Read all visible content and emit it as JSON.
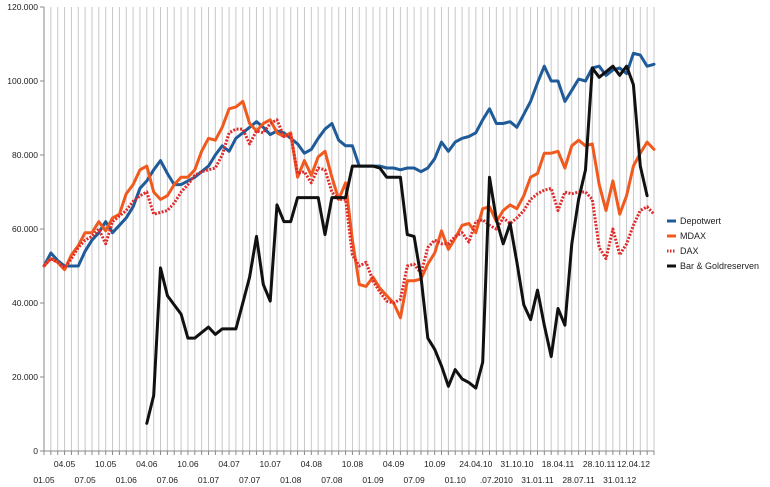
{
  "chart_data": {
    "type": "line",
    "title": "",
    "xlabel": "",
    "ylabel": "",
    "ylim": [
      0,
      120000
    ],
    "yticks": [
      "0",
      "20.000",
      "40.000",
      "60.000",
      "80.000",
      "100.000",
      "120.000"
    ],
    "grid": "vertical",
    "legend_position": "right",
    "xtick_labels": [
      {
        "idx": 3,
        "row": 1,
        "text": "04.05"
      },
      {
        "idx": 9,
        "row": 1,
        "text": "10.05"
      },
      {
        "idx": 15,
        "row": 1,
        "text": "04.06"
      },
      {
        "idx": 21,
        "row": 1,
        "text": "10.06"
      },
      {
        "idx": 27,
        "row": 1,
        "text": "04.07"
      },
      {
        "idx": 33,
        "row": 1,
        "text": "10.07"
      },
      {
        "idx": 39,
        "row": 1,
        "text": "04.08"
      },
      {
        "idx": 45,
        "row": 1,
        "text": "10.08"
      },
      {
        "idx": 51,
        "row": 1,
        "text": "04.09"
      },
      {
        "idx": 57,
        "row": 1,
        "text": "10.09"
      },
      {
        "idx": 63,
        "row": 1,
        "text": "24.04.10"
      },
      {
        "idx": 69,
        "row": 1,
        "text": "31.10.10"
      },
      {
        "idx": 75,
        "row": 1,
        "text": "18.04.11"
      },
      {
        "idx": 81,
        "row": 1,
        "text": "28.10.11"
      },
      {
        "idx": 86,
        "row": 1,
        "text": "12.04.12"
      },
      {
        "idx": 0,
        "row": 2,
        "text": "01.05"
      },
      {
        "idx": 6,
        "row": 2,
        "text": "07.05"
      },
      {
        "idx": 12,
        "row": 2,
        "text": "01.06"
      },
      {
        "idx": 18,
        "row": 2,
        "text": "07.06"
      },
      {
        "idx": 24,
        "row": 2,
        "text": "01.07"
      },
      {
        "idx": 30,
        "row": 2,
        "text": "07.07"
      },
      {
        "idx": 36,
        "row": 2,
        "text": "01.08"
      },
      {
        "idx": 42,
        "row": 2,
        "text": "07.08"
      },
      {
        "idx": 48,
        "row": 2,
        "text": "01.09"
      },
      {
        "idx": 54,
        "row": 2,
        "text": "07.09"
      },
      {
        "idx": 60,
        "row": 2,
        "text": "01.10"
      },
      {
        "idx": 66,
        "row": 2,
        "text": ".07.2010"
      },
      {
        "idx": 72,
        "row": 2,
        "text": "31.01.11"
      },
      {
        "idx": 78,
        "row": 2,
        "text": "28.07.11"
      },
      {
        "idx": 84,
        "row": 2,
        "text": "31.01.12"
      }
    ],
    "series": [
      {
        "name": "Depotwert",
        "color": "#1f5b99",
        "style": "solid",
        "values": [
          50000,
          53500,
          51500,
          50000,
          50000,
          50000,
          54000,
          57000,
          59000,
          62000,
          59000,
          61000,
          63000,
          66000,
          71000,
          73000,
          76000,
          78500,
          75000,
          72000,
          72000,
          73000,
          74000,
          75500,
          77000,
          80000,
          82500,
          81000,
          84500,
          86000,
          87500,
          89000,
          87500,
          85500,
          86500,
          86000,
          84500,
          83000,
          80500,
          81500,
          84500,
          87000,
          88500,
          84000,
          82500,
          82500,
          77000,
          77000,
          77000,
          77000,
          76500,
          76500,
          76000,
          76500,
          76500,
          75500,
          76500,
          79000,
          83500,
          81000,
          83500,
          84500,
          85000,
          86000,
          89500,
          92500,
          88500,
          88500,
          89000,
          87500,
          91000,
          94500,
          99500,
          104000,
          100000,
          100000,
          94500,
          97500,
          100500,
          100000,
          103500,
          104000,
          101500,
          103000,
          103500,
          102000,
          107500,
          107000,
          104000,
          104500
        ],
        "notes": "approximate readings"
      },
      {
        "name": "MDAX",
        "color": "#f05a1f",
        "style": "solid",
        "values": [
          50000,
          52000,
          51000,
          49000,
          53000,
          55500,
          59000,
          59000,
          62000,
          59500,
          63000,
          64000,
          69500,
          72000,
          76000,
          77000,
          70000,
          68000,
          69000,
          72000,
          74000,
          74000,
          76000,
          81000,
          84500,
          84000,
          87500,
          92500,
          93000,
          94500,
          88500,
          86500,
          88500,
          89500,
          86000,
          85000,
          86000,
          74000,
          78500,
          74500,
          79500,
          81000,
          74000,
          68000,
          72500,
          57000,
          45000,
          44500,
          47000,
          44000,
          42000,
          40000,
          36000,
          46000,
          46000,
          46500,
          50500,
          53500,
          59500,
          54500,
          57500,
          61000,
          61500,
          59000,
          65500,
          66000,
          62000,
          65000,
          66500,
          65500,
          69000,
          74000,
          75000,
          80500,
          80500,
          81000,
          76500,
          82500,
          84000,
          82500,
          83000,
          72000,
          65000,
          73000,
          64000,
          69000,
          77000,
          80500,
          83500,
          81500
        ],
        "notes": "approximate readings"
      },
      {
        "name": "DAX",
        "color": "#e02b2b",
        "style": "dotted",
        "values": [
          50000,
          52000,
          51000,
          49500,
          52000,
          55000,
          57000,
          58000,
          60000,
          56000,
          62000,
          63500,
          65000,
          67500,
          69000,
          70000,
          64000,
          64500,
          65000,
          67000,
          70000,
          72000,
          74500,
          75500,
          76000,
          76500,
          80000,
          86000,
          87000,
          87000,
          83000,
          86500,
          86000,
          88500,
          89500,
          85000,
          85500,
          75000,
          75500,
          72500,
          76500,
          76000,
          70000,
          68000,
          68000,
          53000,
          50000,
          51000,
          46000,
          43000,
          40500,
          40000,
          41000,
          50000,
          50500,
          48000,
          55000,
          57000,
          56000,
          56000,
          58000,
          59000,
          56500,
          62000,
          62500,
          61000,
          60000,
          63000,
          61500,
          63000,
          65000,
          68000,
          69500,
          70500,
          71000,
          65000,
          70000,
          69500,
          70000,
          70000,
          68000,
          55000,
          52000,
          60000,
          53000,
          56000,
          61000,
          65000,
          66000,
          64000
        ],
        "notes": "approximate readings"
      },
      {
        "name": "Bar & Goldreserven",
        "color": "#111111",
        "style": "solid",
        "values": [
          null,
          null,
          null,
          null,
          null,
          null,
          null,
          null,
          null,
          null,
          null,
          null,
          null,
          null,
          null,
          7500,
          15000,
          49500,
          42000,
          39500,
          37000,
          30500,
          30500,
          32000,
          33500,
          31500,
          33000,
          33000,
          33000,
          40000,
          47000,
          58000,
          45000,
          40500,
          66500,
          62000,
          62000,
          68500,
          68500,
          68500,
          68500,
          58500,
          68500,
          68500,
          68500,
          77000,
          77000,
          77000,
          77000,
          76500,
          74000,
          74000,
          74000,
          58500,
          58000,
          47000,
          30500,
          27500,
          23000,
          17500,
          22000,
          19500,
          18500,
          17000,
          24000,
          74000,
          62500,
          56000,
          61500,
          51000,
          39500,
          35500,
          43500,
          34000,
          25500,
          38500,
          34000,
          56000,
          68000,
          76000,
          103500,
          101000,
          102500,
          104000,
          101500,
          104000,
          99000,
          77000,
          69000,
          null
        ],
        "notes": "approximate readings"
      }
    ]
  }
}
